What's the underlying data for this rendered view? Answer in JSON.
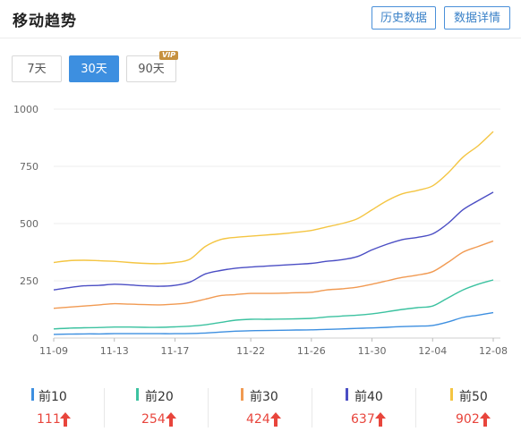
{
  "header": {
    "title": "移动趋势",
    "history_button": "历史数据",
    "detail_button": "数据详情"
  },
  "tabs": [
    {
      "label": "7天",
      "active": false
    },
    {
      "label": "30天",
      "active": true
    },
    {
      "label": "90天",
      "active": false,
      "badge": "VIP"
    }
  ],
  "chart_data": {
    "type": "line",
    "ylim": [
      0,
      1000
    ],
    "yticks": [
      "0",
      "250",
      "500",
      "750",
      "1000"
    ],
    "xticks": [
      "11-09",
      "11-13",
      "11-17",
      "11-22",
      "11-26",
      "11-30",
      "12-04",
      "12-08"
    ],
    "x": [
      "11-09",
      "11-10",
      "11-11",
      "11-12",
      "11-13",
      "11-14",
      "11-15",
      "11-16",
      "11-17",
      "11-18",
      "11-19",
      "11-20",
      "11-21",
      "11-22",
      "11-23",
      "11-24",
      "11-25",
      "11-26",
      "11-27",
      "11-28",
      "11-29",
      "11-30",
      "12-01",
      "12-02",
      "12-03",
      "12-04",
      "12-05",
      "12-06",
      "12-07",
      "12-08"
    ],
    "series": [
      {
        "name": "前10",
        "color": "#3d8fe0",
        "values": [
          16,
          17,
          18,
          18,
          19,
          19,
          19,
          19,
          19,
          20,
          22,
          26,
          30,
          32,
          33,
          34,
          35,
          36,
          38,
          40,
          42,
          44,
          47,
          50,
          52,
          55,
          70,
          90,
          100,
          111
        ]
      },
      {
        "name": "前20",
        "color": "#3cc2a0",
        "values": [
          40,
          43,
          45,
          46,
          48,
          48,
          47,
          47,
          49,
          52,
          58,
          68,
          78,
          82,
          82,
          83,
          84,
          86,
          92,
          96,
          100,
          106,
          115,
          125,
          133,
          140,
          175,
          210,
          235,
          254
        ]
      },
      {
        "name": "前30",
        "color": "#f19a52",
        "values": [
          130,
          135,
          140,
          145,
          150,
          148,
          146,
          145,
          148,
          155,
          170,
          185,
          190,
          195,
          195,
          196,
          198,
          200,
          210,
          215,
          222,
          235,
          250,
          265,
          275,
          290,
          330,
          375,
          400,
          424
        ]
      },
      {
        "name": "前40",
        "color": "#4b4ec4",
        "values": [
          210,
          220,
          228,
          230,
          235,
          232,
          228,
          226,
          230,
          245,
          280,
          295,
          305,
          310,
          314,
          318,
          322,
          326,
          335,
          342,
          355,
          385,
          410,
          430,
          440,
          455,
          500,
          560,
          600,
          637
        ]
      },
      {
        "name": "前50",
        "color": "#f4c542",
        "values": [
          330,
          338,
          340,
          338,
          335,
          330,
          326,
          325,
          330,
          345,
          400,
          430,
          440,
          445,
          450,
          455,
          462,
          470,
          485,
          500,
          520,
          560,
          600,
          630,
          645,
          665,
          720,
          790,
          840,
          902
        ]
      }
    ]
  },
  "legend": [
    {
      "name": "前10",
      "value": "111",
      "color": "#3d8fe0"
    },
    {
      "name": "前20",
      "value": "254",
      "color": "#3cc2a0"
    },
    {
      "name": "前30",
      "value": "424",
      "color": "#f19a52"
    },
    {
      "name": "前40",
      "value": "637",
      "color": "#4b4ec4"
    },
    {
      "name": "前50",
      "value": "902",
      "color": "#f4c542"
    }
  ],
  "colors": {
    "accent": "#3d8fe0",
    "up": "#e8453c",
    "vip": "#c6913f"
  }
}
